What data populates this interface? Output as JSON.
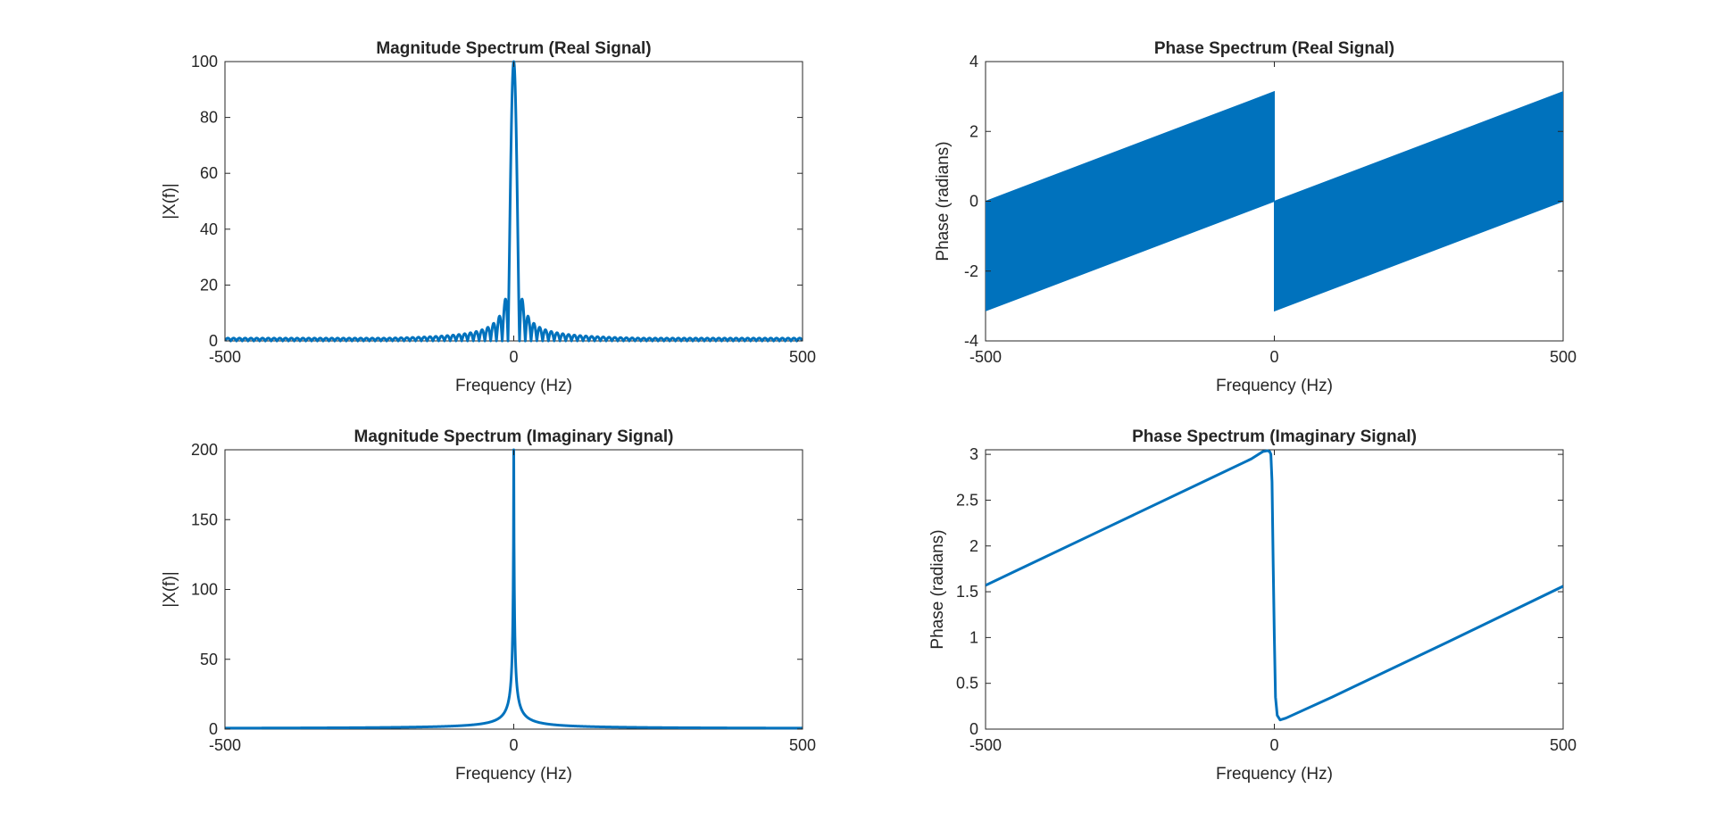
{
  "figure": {
    "colors": {
      "series": "#0072BD",
      "axes": "#262626",
      "background": "#ffffff"
    }
  },
  "chart_data": [
    {
      "type": "line",
      "title": "Magnitude Spectrum (Real Signal)",
      "xlabel": "Frequency (Hz)",
      "ylabel": "|X(f)|",
      "xlim": [
        -500,
        500
      ],
      "ylim": [
        0,
        100
      ],
      "xticks": [
        -500,
        0,
        500
      ],
      "yticks": [
        0,
        20,
        40,
        60,
        80,
        100
      ],
      "grid": false,
      "series": [
        {
          "x": [
            -500,
            -400,
            -300,
            -200,
            -150,
            -100,
            -80,
            -60,
            -50,
            -40,
            -30,
            -25,
            -20,
            -15,
            -12,
            -10,
            -5,
            0,
            5,
            10,
            12,
            15,
            20,
            25,
            30,
            40,
            50,
            60,
            80,
            100,
            150,
            200,
            300,
            400,
            500
          ],
          "values": [
            1,
            1,
            1.5,
            2,
            2.5,
            3,
            4,
            5,
            6,
            8,
            10,
            12,
            16,
            22,
            21,
            0,
            60,
            100,
            60,
            0,
            21,
            22,
            16,
            12,
            10,
            8,
            6,
            5,
            4,
            3,
            2.5,
            2,
            1.5,
            1,
            1
          ],
          "note_style": "oscillating sidelobes (sinc-like)"
        }
      ]
    },
    {
      "type": "line",
      "title": "Phase Spectrum (Real Signal)",
      "xlabel": "Frequency (Hz)",
      "ylabel": "Phase (radians)",
      "xlim": [
        -500,
        500
      ],
      "ylim": [
        -4,
        4
      ],
      "xticks": [
        -500,
        0,
        500
      ],
      "yticks": [
        -4,
        -2,
        0,
        2,
        4
      ],
      "grid": false,
      "series": [
        {
          "x": [
            -500,
            0,
            0,
            500
          ],
          "upper": [
            0,
            3.14,
            0,
            3.14
          ],
          "lower": [
            -3.14,
            0,
            -3.14,
            0
          ]
        }
      ]
    },
    {
      "type": "line",
      "title": "Magnitude Spectrum (Imaginary Signal)",
      "xlabel": "Frequency (Hz)",
      "ylabel": "|X(f)|",
      "xlim": [
        -500,
        500
      ],
      "ylim": [
        0,
        200
      ],
      "xticks": [
        -500,
        0,
        500
      ],
      "yticks": [
        0,
        50,
        100,
        150,
        200
      ],
      "grid": false,
      "series": [
        {
          "x": [
            -500,
            -400,
            -300,
            -200,
            -100,
            -50,
            -30,
            -20,
            -10,
            -5,
            -2,
            0,
            2,
            5,
            10,
            20,
            30,
            50,
            100,
            200,
            300,
            400,
            500
          ],
          "values": [
            0.4,
            0.5,
            0.7,
            1.0,
            2.0,
            4.0,
            6.5,
            10,
            20,
            40,
            100,
            200,
            100,
            40,
            20,
            10,
            6.5,
            4.0,
            2.0,
            1.0,
            0.7,
            0.5,
            0.4
          ]
        }
      ]
    },
    {
      "type": "line",
      "title": "Phase Spectrum (Imaginary Signal)",
      "xlabel": "Frequency (Hz)",
      "ylabel": "Phase (radians)",
      "xlim": [
        -500,
        500
      ],
      "ylim": [
        0,
        3.05
      ],
      "xticks": [
        -500,
        0,
        500
      ],
      "yticks": [
        0,
        0.5,
        1,
        1.5,
        2,
        2.5,
        3
      ],
      "grid": false,
      "series": [
        {
          "x": [
            -500,
            -300,
            -100,
            -40,
            -20,
            -12,
            -8,
            -6,
            -4,
            -2,
            0,
            2,
            5,
            10,
            20,
            100,
            300,
            500
          ],
          "values": [
            1.57,
            2.17,
            2.77,
            2.95,
            3.03,
            3.04,
            3.03,
            3.0,
            2.7,
            1.8,
            1.0,
            0.35,
            0.15,
            0.1,
            0.12,
            0.35,
            0.95,
            1.56
          ]
        }
      ]
    }
  ]
}
